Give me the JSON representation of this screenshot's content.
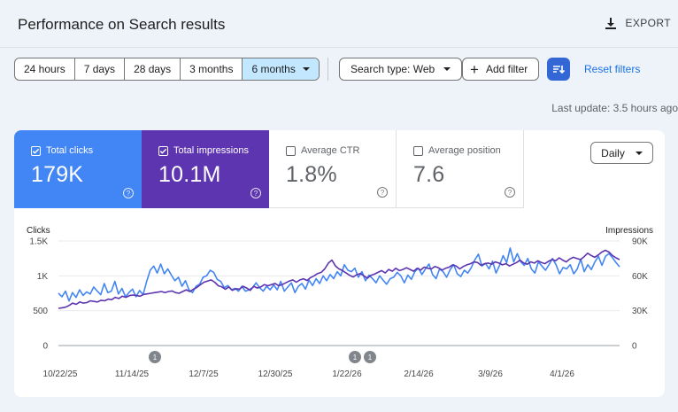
{
  "header": {
    "title": "Performance on Search results",
    "export_label": "EXPORT"
  },
  "toolbar": {
    "date_ranges": [
      "24 hours",
      "7 days",
      "28 days",
      "3 months",
      "6 months"
    ],
    "active_range": "6 months",
    "search_type_label": "Search type: Web",
    "add_filter_label": "Add filter",
    "reset_filters_label": "Reset filters"
  },
  "last_update": "Last update: 3.5 hours ago",
  "metrics": {
    "clicks": {
      "label": "Total clicks",
      "value": "179K",
      "checked": true,
      "color": "#4285f4"
    },
    "impressions": {
      "label": "Total impressions",
      "value": "10.1M",
      "checked": true,
      "color": "#5e35b1"
    },
    "ctr": {
      "label": "Average CTR",
      "value": "1.8%",
      "checked": false
    },
    "position": {
      "label": "Average position",
      "value": "7.6",
      "checked": false
    },
    "help_glyph": "?"
  },
  "granularity": "Daily",
  "chart_data": {
    "type": "line",
    "left_axis_title": "Clicks",
    "right_axis_title": "Impressions",
    "left_ticks": [
      "1.5K",
      "1K",
      "500",
      "0"
    ],
    "right_ticks": [
      "90K",
      "60K",
      "30K",
      "0"
    ],
    "left_range": [
      0,
      1500
    ],
    "right_range": [
      0,
      90000
    ],
    "x_labels": [
      "10/22/25",
      "11/14/25",
      "12/7/25",
      "12/30/25",
      "1/22/26",
      "2/14/26",
      "3/9/26",
      "4/1/26"
    ],
    "annotations": [
      {
        "label": "1",
        "date": "11/20/25"
      },
      {
        "label": "1",
        "date": "1/22/26"
      },
      {
        "label": "1",
        "date": "1/25/26"
      }
    ],
    "series": [
      {
        "name": "Total clicks",
        "axis": "left",
        "color": "#4285f4",
        "values": [
          750,
          700,
          780,
          640,
          760,
          690,
          800,
          720,
          770,
          740,
          840,
          780,
          730,
          890,
          760,
          780,
          920,
          740,
          820,
          700,
          760,
          810,
          700,
          790,
          730,
          920,
          1080,
          1140,
          1040,
          1170,
          1030,
          1100,
          1010,
          930,
          980,
          850,
          930,
          800,
          760,
          850,
          880,
          980,
          1000,
          1080,
          1050,
          950,
          920,
          830,
          860,
          800,
          820,
          780,
          850,
          780,
          800,
          830,
          900,
          830,
          780,
          850,
          800,
          870,
          800,
          920,
          780,
          840,
          900,
          760,
          850,
          890,
          810,
          940,
          860,
          960,
          890,
          1000,
          930,
          1020,
          960,
          1060,
          1000,
          1160,
          1080,
          1060,
          1110,
          980,
          1060,
          930,
          1010,
          960,
          900,
          1000,
          940,
          880,
          960,
          980,
          1050,
          1000,
          900,
          1010,
          950,
          1060,
          1110,
          1020,
          1100,
          1170,
          1020,
          960,
          1100,
          1060,
          980,
          1090,
          1160,
          1030,
          990,
          1080,
          1040,
          1120,
          1230,
          1310,
          1140,
          1180,
          1100,
          1210,
          1040,
          1150,
          1290,
          1190,
          1400,
          1200,
          1320,
          1200,
          1150,
          1250,
          1100,
          1040,
          1200,
          1140,
          1080,
          1160,
          1250,
          1160,
          1030,
          1120,
          1100,
          1160,
          1030,
          1100,
          1240,
          1060,
          1160,
          1090,
          1200,
          1280,
          1150,
          1280,
          1320,
          1260,
          1190,
          1130
        ]
      },
      {
        "name": "Total impressions",
        "axis": "right",
        "color": "#5e35b1",
        "values": [
          32000,
          32500,
          33000,
          34500,
          36500,
          35500,
          37500,
          36500,
          37000,
          38500,
          38000,
          37500,
          39000,
          38500,
          40000,
          39500,
          41500,
          40500,
          42500,
          41500,
          43000,
          43500,
          43000,
          42500,
          44000,
          44500,
          45000,
          45500,
          46000,
          46500,
          45500,
          46500,
          47000,
          45500,
          45000,
          46500,
          48000,
          46500,
          48500,
          50000,
          52500,
          54500,
          55500,
          56500,
          54500,
          51500,
          50500,
          48500,
          50500,
          47500,
          49000,
          48500,
          51000,
          49500,
          47500,
          51000,
          49500,
          50500,
          52500,
          51500,
          52500,
          53500,
          51500,
          52500,
          54000,
          55500,
          56500,
          54500,
          56500,
          57500,
          56000,
          58500,
          60000,
          62000,
          63000,
          66000,
          71000,
          73500,
          68500,
          66000,
          64500,
          62500,
          60500,
          59000,
          61000,
          62000,
          60000,
          58000,
          60500,
          61500,
          63000,
          64500,
          62500,
          65500,
          64000,
          66500,
          64500,
          65500,
          67000,
          65500,
          64000,
          66500,
          65000,
          67500,
          66500,
          66000,
          68000,
          67000,
          65000,
          66500,
          67500,
          69500,
          68500,
          66000,
          68000,
          69500,
          70500,
          72000,
          71500,
          69000,
          70500,
          71000,
          70000,
          72000,
          71000,
          69500,
          70500,
          68500,
          70000,
          71500,
          73500,
          71000,
          70000,
          72000,
          71000,
          73000,
          71500,
          70500,
          72500,
          74000,
          73000,
          75500,
          73500,
          72000,
          74500,
          76000,
          75000,
          74000,
          76500,
          79500,
          77500,
          76000,
          78000,
          80500,
          82000,
          80500,
          77500,
          75500,
          74000
        ]
      }
    ]
  }
}
